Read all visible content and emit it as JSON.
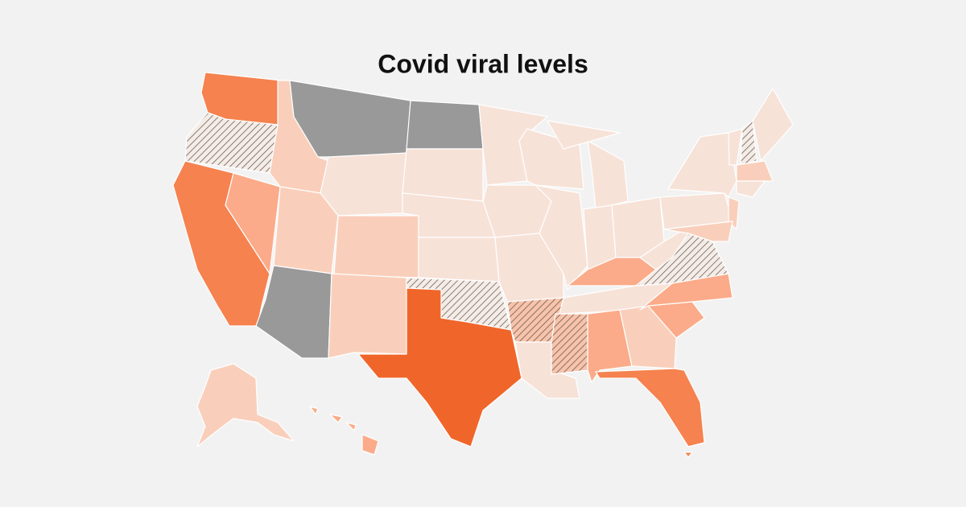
{
  "title": "Covid viral levels"
}
